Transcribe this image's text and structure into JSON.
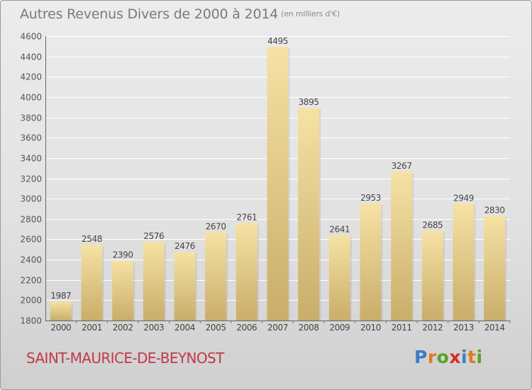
{
  "header": {
    "title": "Autres Revenus Divers de 2000 à 2014",
    "subtitle": "(en milliers d'€)"
  },
  "footer": {
    "commune": "SAINT-MAURICE-DE-BEYNOST",
    "logo_letters": [
      "P",
      "r",
      "o",
      "x",
      "i",
      "t",
      "i"
    ],
    "logo_colors": [
      "#3b7dc4",
      "#e07b1a",
      "#5aa02c",
      "#d92b2b",
      "#3b7dc4",
      "#e07b1a",
      "#5aa02c"
    ]
  },
  "colors": {
    "bar_light": "#f6e2a4",
    "bar_dark": "#c9ad6a",
    "grid": "#ffffff",
    "title": "#7a7a7a",
    "commune": "#c0394b"
  },
  "chart_data": {
    "type": "bar",
    "title": "Autres Revenus Divers de 2000 à 2014",
    "subtitle": "(en milliers d'€)",
    "categories": [
      "2000",
      "2001",
      "2002",
      "2003",
      "2004",
      "2005",
      "2006",
      "2007",
      "2008",
      "2009",
      "2010",
      "2011",
      "2012",
      "2013",
      "2014"
    ],
    "values": [
      1987,
      2548,
      2390,
      2576,
      2476,
      2670,
      2761,
      4495,
      3895,
      2641,
      2953,
      3267,
      2685,
      2949,
      2830
    ],
    "ylim": [
      1800,
      4600
    ],
    "yticks": [
      1800,
      2000,
      2200,
      2400,
      2600,
      2800,
      3000,
      3200,
      3400,
      3600,
      3800,
      4000,
      4200,
      4400,
      4600
    ],
    "grid": true,
    "data_labels": true
  }
}
